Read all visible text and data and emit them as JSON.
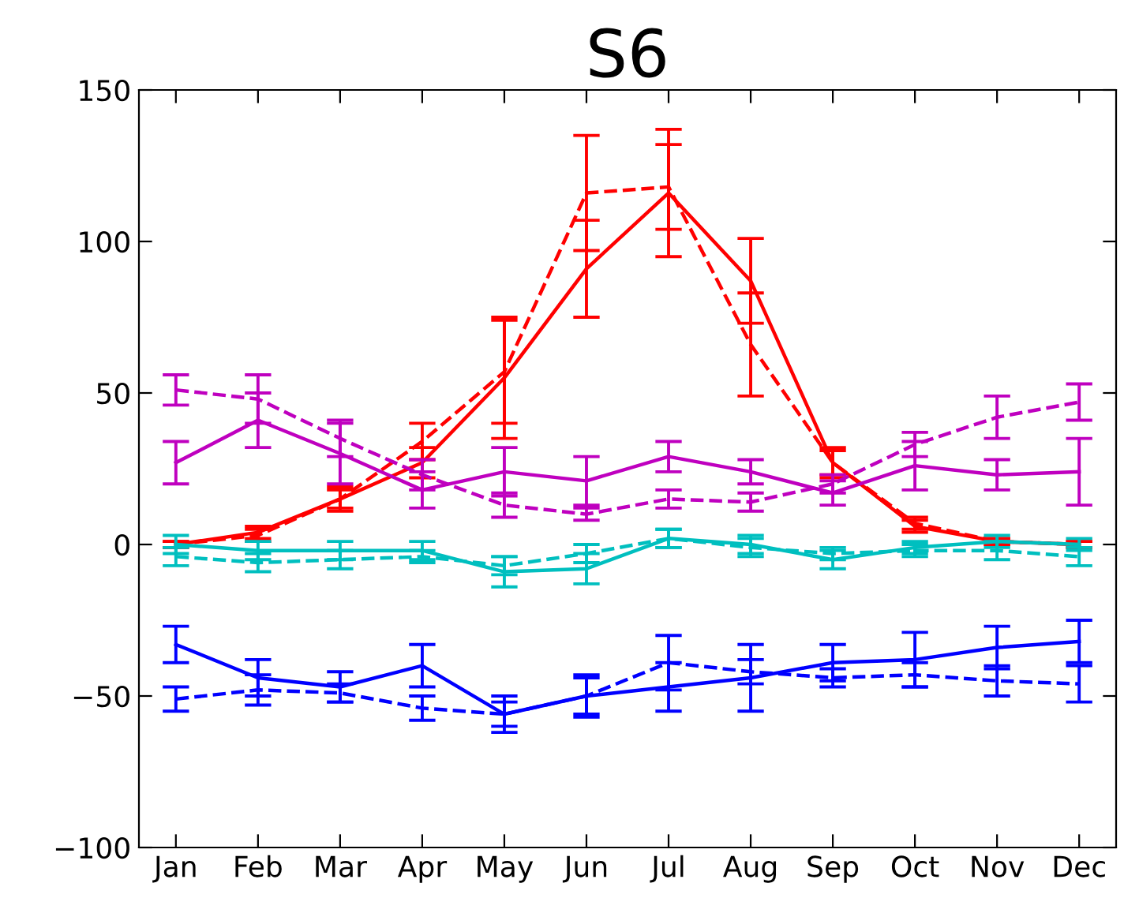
{
  "chart_data": {
    "type": "line",
    "title": "S6",
    "categories": [
      "Jan",
      "Feb",
      "Mar",
      "Apr",
      "May",
      "Jun",
      "Jul",
      "Aug",
      "Sep",
      "Oct",
      "Nov",
      "Dec"
    ],
    "ylim": [
      -100,
      150
    ],
    "yticks": [
      -100,
      -50,
      0,
      50,
      100,
      150
    ],
    "grid": false,
    "marker": "none",
    "series": [
      {
        "color": "#ff0000",
        "line_style": "solid",
        "values": [
          0,
          4,
          15,
          27,
          55,
          91,
          116,
          87,
          27,
          6,
          1,
          0
        ],
        "errors": [
          1,
          2,
          3,
          5,
          20,
          16,
          21,
          14,
          5,
          2,
          1,
          1
        ]
      },
      {
        "color": "#ff0000",
        "line_style": "dashed",
        "values": [
          0,
          3,
          15,
          34,
          57,
          116,
          118,
          66,
          27,
          7,
          1,
          0
        ],
        "errors": [
          1,
          2,
          4,
          6,
          17,
          19,
          14,
          17,
          4,
          2,
          1,
          1
        ]
      },
      {
        "color": "#bf00bf",
        "line_style": "solid",
        "values": [
          27,
          41,
          30,
          18,
          24,
          21,
          29,
          24,
          17,
          26,
          23,
          24
        ],
        "errors": [
          7,
          9,
          10,
          6,
          8,
          8,
          5,
          4,
          4,
          8,
          5,
          11
        ]
      },
      {
        "color": "#bf00bf",
        "line_style": "dashed",
        "values": [
          51,
          48,
          35,
          23,
          13,
          10,
          15,
          14,
          20,
          33,
          42,
          47
        ],
        "errors": [
          5,
          8,
          6,
          5,
          4,
          2,
          3,
          3,
          3,
          4,
          7,
          6
        ]
      },
      {
        "color": "#00bfbf",
        "line_style": "solid",
        "values": [
          0,
          -2,
          -2,
          -2,
          -9,
          -8,
          2,
          0,
          -5,
          -1,
          1,
          0
        ],
        "errors": [
          3,
          3,
          3,
          3,
          5,
          5,
          3,
          3,
          3,
          2,
          2,
          2
        ]
      },
      {
        "color": "#00bfbf",
        "line_style": "dashed",
        "values": [
          -4,
          -6,
          -5,
          -4,
          -7,
          -3,
          2,
          -1,
          -3,
          -2,
          -2,
          -4
        ],
        "errors": [
          3,
          3,
          3,
          2,
          3,
          3,
          3,
          3,
          2,
          2,
          3,
          3
        ]
      },
      {
        "color": "#0000ff",
        "line_style": "solid",
        "values": [
          -33,
          -44,
          -47,
          -40,
          -56,
          -50,
          -47,
          -44,
          -39,
          -38,
          -34,
          -32
        ],
        "errors": [
          6,
          6,
          5,
          7,
          6,
          6,
          8,
          11,
          6,
          9,
          7,
          7
        ]
      },
      {
        "color": "#0000ff",
        "line_style": "dashed",
        "values": [
          -51,
          -48,
          -49,
          -54,
          -56,
          -50,
          -39,
          -42,
          -44,
          -43,
          -45,
          -46
        ],
        "errors": [
          4,
          5,
          3,
          4,
          4,
          7,
          9,
          4,
          3,
          4,
          5,
          6
        ]
      }
    ]
  }
}
